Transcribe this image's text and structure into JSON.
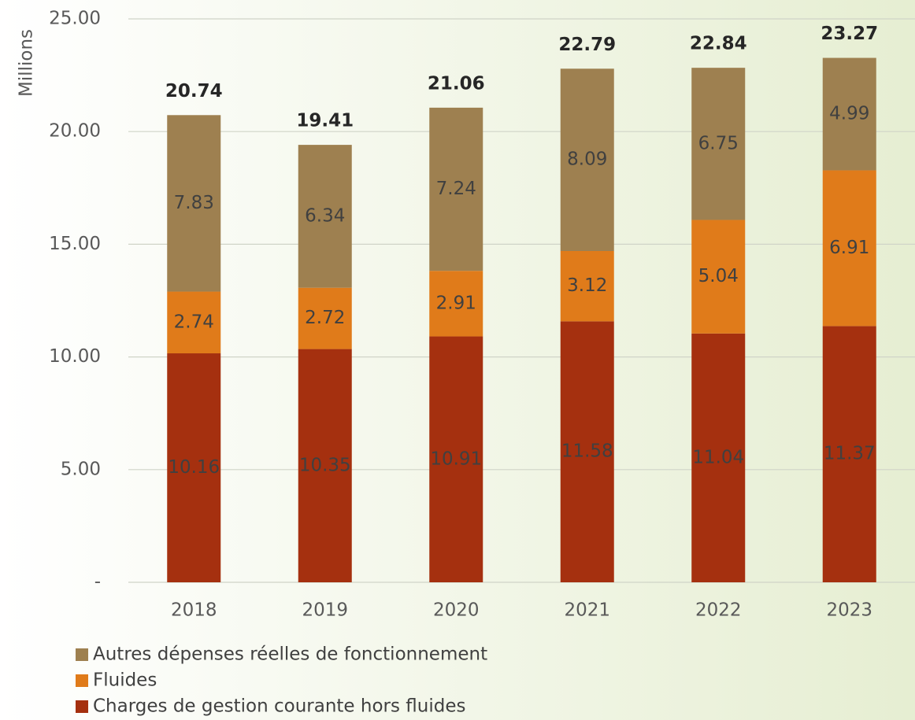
{
  "chart_data": {
    "type": "stacked_bar",
    "y_label": "Millions",
    "categories": [
      "2018",
      "2019",
      "2020",
      "2021",
      "2022",
      "2023"
    ],
    "series": [
      {
        "name": "Charges de gestion courante hors fluides",
        "color": "#a5300f",
        "values": [
          10.16,
          10.35,
          10.91,
          11.58,
          11.04,
          11.37
        ]
      },
      {
        "name": "Fluides",
        "color": "#e07b1a",
        "values": [
          2.74,
          2.72,
          2.91,
          3.12,
          5.04,
          6.91
        ]
      },
      {
        "name": "Autres dépenses réelles de fonctionnement",
        "color": "#9e8050",
        "values": [
          7.83,
          6.34,
          7.24,
          8.09,
          6.75,
          4.99
        ]
      }
    ],
    "totals": [
      20.74,
      19.41,
      21.06,
      22.79,
      22.84,
      23.27
    ],
    "ylim": [
      0,
      25
    ],
    "yticks": [
      {
        "value": 0,
        "label": "-"
      },
      {
        "value": 5,
        "label": "5.00"
      },
      {
        "value": 10,
        "label": "10.00"
      },
      {
        "value": 15,
        "label": "15.00"
      },
      {
        "value": 20,
        "label": "20.00"
      },
      {
        "value": 25,
        "label": "25.00"
      }
    ],
    "grid": true
  }
}
